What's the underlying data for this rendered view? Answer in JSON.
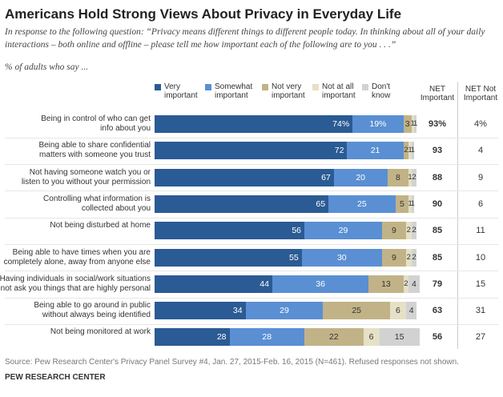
{
  "chart_data": {
    "type": "stacked-bar-horizontal",
    "title": "Americans Hold Strong Views About Privacy in Everyday Life",
    "subtitle": "In response to the following question: “Privacy means different things to different people today. In thinking about all of your daily interactions – both online and offline – please tell me how important each of the following are to you . . .”",
    "note": "% of adults who say ...",
    "categories": [
      "Being in control of who can get\ninfo about you",
      "Being able to share confidential\nmatters with someone you trust",
      "Not having someone watch you or\nlisten to you without your permission",
      "Controlling what information is\ncollected about you",
      "Not being disturbed at home",
      "Being able to have times when you are\ncompletely alone, away from anyone else",
      "Having individuals in social/work situations\nnot ask you things that are highly personal",
      "Being able to go around in public\nwithout always being identified",
      "Not being monitored at work"
    ],
    "xlim": [
      0,
      100
    ],
    "series": [
      {
        "name": "Very\nimportant",
        "color": "#2b5b94",
        "values": [
          74,
          72,
          67,
          65,
          56,
          55,
          44,
          34,
          28
        ],
        "value_labels": [
          "74%",
          "72",
          "67",
          "65",
          "56",
          "55",
          "44",
          "34",
          "28"
        ]
      },
      {
        "name": "Somewhat\nimportant",
        "color": "#5a8fd3",
        "values": [
          19,
          21,
          20,
          25,
          29,
          30,
          36,
          29,
          28
        ],
        "value_labels": [
          "19%",
          "21",
          "20",
          "25",
          "29",
          "30",
          "36",
          "29",
          "28"
        ]
      },
      {
        "name": "Not very\nimportant",
        "color": "#c1b387",
        "values": [
          3,
          2,
          8,
          5,
          9,
          9,
          13,
          25,
          22
        ]
      },
      {
        "name": "Not at all\nimportant",
        "color": "#e5e0c6",
        "values": [
          1,
          1,
          1,
          1,
          2,
          2,
          2,
          6,
          6
        ]
      },
      {
        "name": "Don't\nknow",
        "color": "#d2d2d2",
        "values": [
          1,
          1,
          2,
          1,
          2,
          2,
          4,
          4,
          15
        ]
      }
    ],
    "net_important": {
      "label": "NET\nImportant",
      "values": [
        93,
        93,
        88,
        90,
        85,
        85,
        79,
        63,
        56
      ],
      "value_labels": [
        "93%",
        "93",
        "88",
        "90",
        "85",
        "85",
        "79",
        "63",
        "56"
      ]
    },
    "net_not_important": {
      "label": "NET Not\nImportant",
      "values": [
        4,
        4,
        9,
        6,
        11,
        10,
        15,
        31,
        27
      ],
      "value_labels": [
        "4%",
        "4",
        "9",
        "6",
        "11",
        "10",
        "15",
        "31",
        "27"
      ]
    },
    "source": "Source: Pew Research Center's Privacy Panel Survey #4, Jan. 27, 2015-Feb. 16, 2015 (N=461). Refused responses not shown.",
    "organization": "PEW RESEARCH CENTER"
  }
}
